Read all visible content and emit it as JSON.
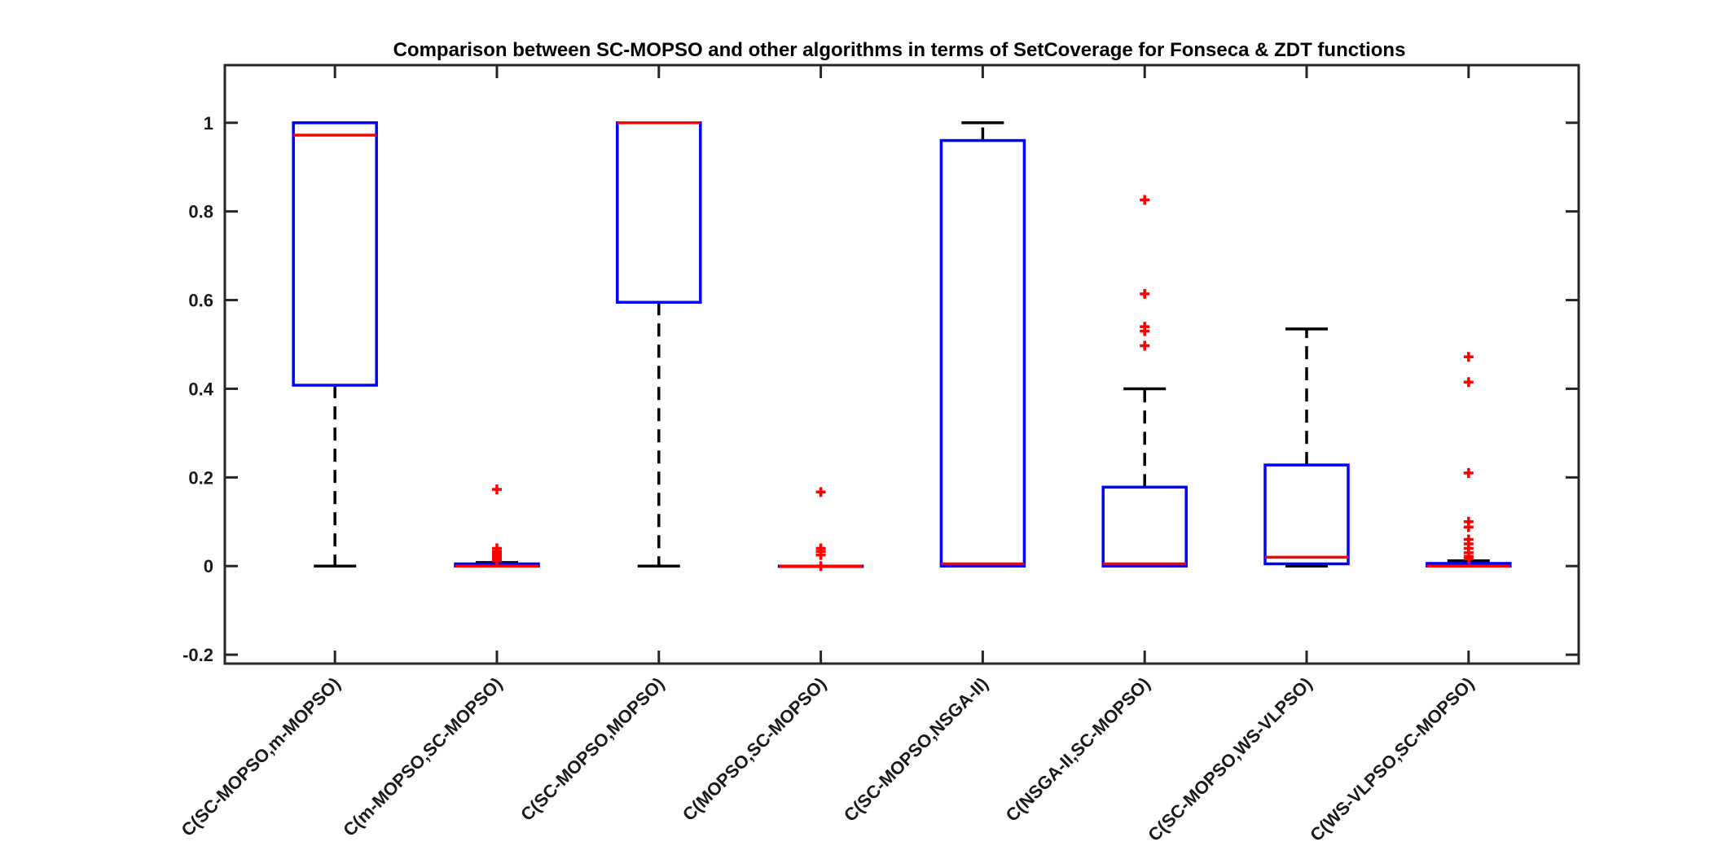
{
  "chart_data": {
    "type": "boxplot",
    "title": "Comparison between SC-MOPSO and other algorithms in terms of SetCoverage for Fonseca & ZDT functions",
    "xlabel": "",
    "ylabel": "",
    "ylim": [
      -0.22,
      1.13
    ],
    "yticks": [
      -0.2,
      0,
      0.2,
      0.4,
      0.6,
      0.8,
      1
    ],
    "ytick_labels": [
      "-0.2",
      "0",
      "0.2",
      "0.4",
      "0.6",
      "0.8",
      "1"
    ],
    "grid": false,
    "legend": "none",
    "categories": [
      "C(SC-MOPSO,m-MOPSO)",
      "C(m-MOPSO,SC-MOPSO)",
      "C(SC-MOPSO,MOPSO)",
      "C(MOPSO,SC-MOPSO)",
      "C(SC-MOPSO,NSGA-II)",
      "C(NSGA-II,SC-MOPSO)",
      "C(SC-MOPSO,WS-VLPSO)",
      "C(WS-VLPSO,SC-MOPSO)"
    ],
    "boxes": [
      {
        "whisker_low": 0.0,
        "q1": 0.408,
        "median": 0.972,
        "q3": 1.0,
        "whisker_high": 1.0,
        "outliers": []
      },
      {
        "whisker_low": 0.0,
        "q1": 0.0,
        "median": 0.0,
        "q3": 0.005,
        "whisker_high": 0.008,
        "outliers": [
          0.173,
          0.04,
          0.033,
          0.028,
          0.024,
          0.02,
          0.016,
          0.012
        ]
      },
      {
        "whisker_low": 0.0,
        "q1": 0.595,
        "median": 1.0,
        "q3": 1.0,
        "whisker_high": 1.0,
        "outliers": []
      },
      {
        "whisker_low": 0.0,
        "q1": 0.0,
        "median": 0.0,
        "q3": 0.0,
        "whisker_high": 0.0,
        "outliers": [
          0.167,
          0.04,
          0.033,
          0.025,
          0.0
        ]
      },
      {
        "whisker_low": 0.0,
        "q1": 0.0,
        "median": 0.005,
        "q3": 0.96,
        "whisker_high": 1.0,
        "outliers": []
      },
      {
        "whisker_low": 0.0,
        "q1": 0.0,
        "median": 0.005,
        "q3": 0.178,
        "whisker_high": 0.4,
        "outliers": [
          0.826,
          0.614,
          0.54,
          0.53,
          0.497
        ]
      },
      {
        "whisker_low": 0.0,
        "q1": 0.005,
        "median": 0.02,
        "q3": 0.228,
        "whisker_high": 0.535,
        "outliers": []
      },
      {
        "whisker_low": 0.0,
        "q1": 0.0,
        "median": 0.0,
        "q3": 0.006,
        "whisker_high": 0.012,
        "outliers": [
          0.472,
          0.415,
          0.21,
          0.1,
          0.088,
          0.06,
          0.05,
          0.04,
          0.03,
          0.022,
          0.016
        ]
      }
    ],
    "colors": {
      "box": "#0000ff",
      "median": "#ff0000",
      "whisker": "#000000",
      "outlier": "#ff0000",
      "axes": "#262626"
    }
  }
}
